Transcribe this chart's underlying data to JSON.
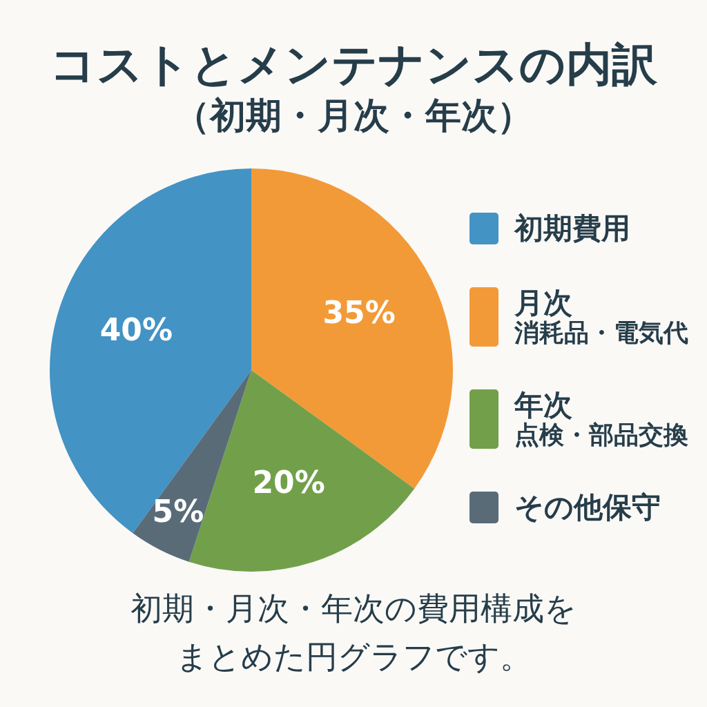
{
  "chart_data": {
    "type": "pie",
    "title": "コストとメンテナンスの内訳",
    "subtitle": "（初期・月次・年次）",
    "categories": [
      "初期費用",
      "月次消耗品・電気代",
      "年次点検・部品交換",
      "その他保守"
    ],
    "values": [
      40,
      35,
      20,
      5
    ],
    "value_labels": [
      "40%",
      "35%",
      "20%",
      "5%"
    ],
    "colors": [
      "#4393c5",
      "#f29a38",
      "#72a04a",
      "#5a6b78"
    ],
    "legend": "right",
    "annotations": [
      "初期・月次・年次の費用構成をまとめた円グラフです。"
    ]
  }
}
